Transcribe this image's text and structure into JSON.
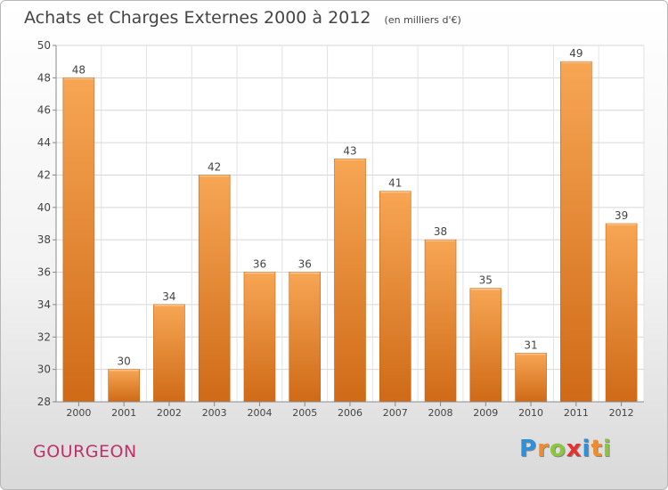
{
  "chart_data": {
    "type": "bar",
    "title": "Achats et Charges Externes 2000 à 2012",
    "subtitle": "(en milliers d'€)",
    "categories": [
      "2000",
      "2001",
      "2002",
      "2003",
      "2004",
      "2005",
      "2006",
      "2007",
      "2008",
      "2009",
      "2010",
      "2011",
      "2012"
    ],
    "values": [
      48,
      30,
      34,
      42,
      36,
      36,
      43,
      41,
      38,
      35,
      31,
      49,
      39
    ],
    "ylim": [
      28,
      50
    ],
    "yticks": [
      28,
      30,
      32,
      34,
      36,
      38,
      40,
      42,
      44,
      46,
      48,
      50
    ],
    "grid": true,
    "bar_color": "#f09840"
  },
  "commune": "GOURGEON",
  "logo": {
    "letters": [
      "P",
      "r",
      "o",
      "x",
      "i",
      "t",
      "i"
    ],
    "colors": [
      "#2f8fd8",
      "#f08c2c",
      "#8cc63e",
      "#e5312f",
      "#2f8fd8",
      "#f08c2c",
      "#8cc63e"
    ]
  }
}
